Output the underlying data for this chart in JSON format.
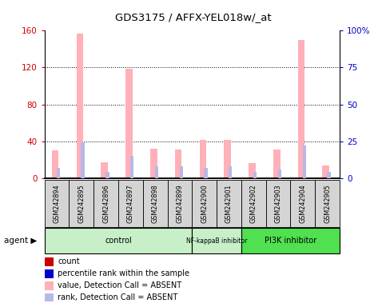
{
  "title": "GDS3175 / AFFX-YEL018w/_at",
  "samples": [
    "GSM242894",
    "GSM242895",
    "GSM242896",
    "GSM242897",
    "GSM242898",
    "GSM242899",
    "GSM242900",
    "GSM242901",
    "GSM242902",
    "GSM242903",
    "GSM242904",
    "GSM242905"
  ],
  "value_absent": [
    30,
    157,
    17,
    119,
    32,
    31,
    41,
    41,
    16,
    31,
    150,
    14
  ],
  "rank_absent": [
    7,
    24,
    4,
    15,
    8,
    8,
    7,
    8,
    4,
    6,
    22,
    4
  ],
  "ylim_left": [
    0,
    160
  ],
  "ylim_right": [
    0,
    100
  ],
  "yticks_left": [
    0,
    40,
    80,
    120,
    160
  ],
  "ytick_labels_left": [
    "0",
    "40",
    "80",
    "120",
    "160"
  ],
  "yticks_right": [
    0,
    25,
    50,
    75,
    100
  ],
  "ytick_labels_right": [
    "0",
    "25",
    "50",
    "75",
    "100%"
  ],
  "color_value_absent": "#ffb0b8",
  "color_rank_absent": "#b8b8e8",
  "color_count": "#cc0000",
  "color_percentile": "#0000cc",
  "group_info": [
    {
      "start": 0,
      "end": 5,
      "label": "control",
      "color": "#c8f0c8"
    },
    {
      "start": 6,
      "end": 7,
      "label": "NF-kappaB inhibitor",
      "color": "#c8f0c8"
    },
    {
      "start": 8,
      "end": 11,
      "label": "PI3K inhibitor",
      "color": "#50e050"
    }
  ],
  "legend_items": [
    {
      "color": "#cc0000",
      "label": "count"
    },
    {
      "color": "#0000cc",
      "label": "percentile rank within the sample"
    },
    {
      "color": "#ffb0b8",
      "label": "value, Detection Call = ABSENT"
    },
    {
      "color": "#b8b8e8",
      "label": "rank, Detection Call = ABSENT"
    }
  ]
}
